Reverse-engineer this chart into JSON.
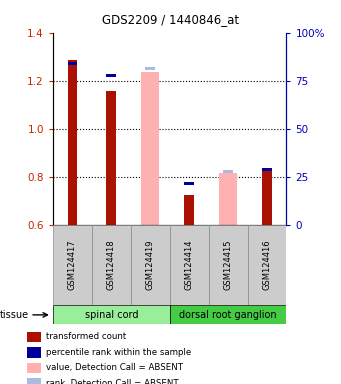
{
  "title": "GDS2209 / 1440846_at",
  "samples": [
    "GSM124417",
    "GSM124418",
    "GSM124419",
    "GSM124414",
    "GSM124415",
    "GSM124416"
  ],
  "ylim": [
    0.6,
    1.4
  ],
  "ylim_right": [
    0,
    100
  ],
  "yticks_left": [
    0.6,
    0.8,
    1.0,
    1.2,
    1.4
  ],
  "yticks_right": [
    0,
    25,
    50,
    75,
    100
  ],
  "ytick_labels_right": [
    "0",
    "25",
    "50",
    "75",
    "100%"
  ],
  "red_bars": [
    1.285,
    1.155,
    null,
    0.725,
    null,
    0.835
  ],
  "blue_markers_left": [
    1.265,
    1.215,
    null,
    0.765,
    null,
    0.825
  ],
  "pink_bars": [
    null,
    null,
    1.235,
    null,
    0.815,
    null
  ],
  "lightblue_markers_left": [
    null,
    null,
    1.245,
    null,
    0.815,
    null
  ],
  "bar_width": 0.45,
  "colors": {
    "red": "#AA1100",
    "blue": "#000099",
    "pink": "#FFB0B0",
    "lightblue": "#AABBDD",
    "label_left": "#CC2200",
    "label_right": "#0000BB",
    "tissue_spinal": "#99EE99",
    "tissue_ganglion": "#44CC44",
    "sample_bg": "#CCCCCC",
    "sample_border": "#888888"
  },
  "tissues": [
    "spinal cord",
    "dorsal root ganglion"
  ],
  "legend_items": [
    {
      "label": "transformed count",
      "color": "#AA1100"
    },
    {
      "label": "percentile rank within the sample",
      "color": "#000099"
    },
    {
      "label": "value, Detection Call = ABSENT",
      "color": "#FFB0B0"
    },
    {
      "label": "rank, Detection Call = ABSENT",
      "color": "#AABBDD"
    }
  ]
}
